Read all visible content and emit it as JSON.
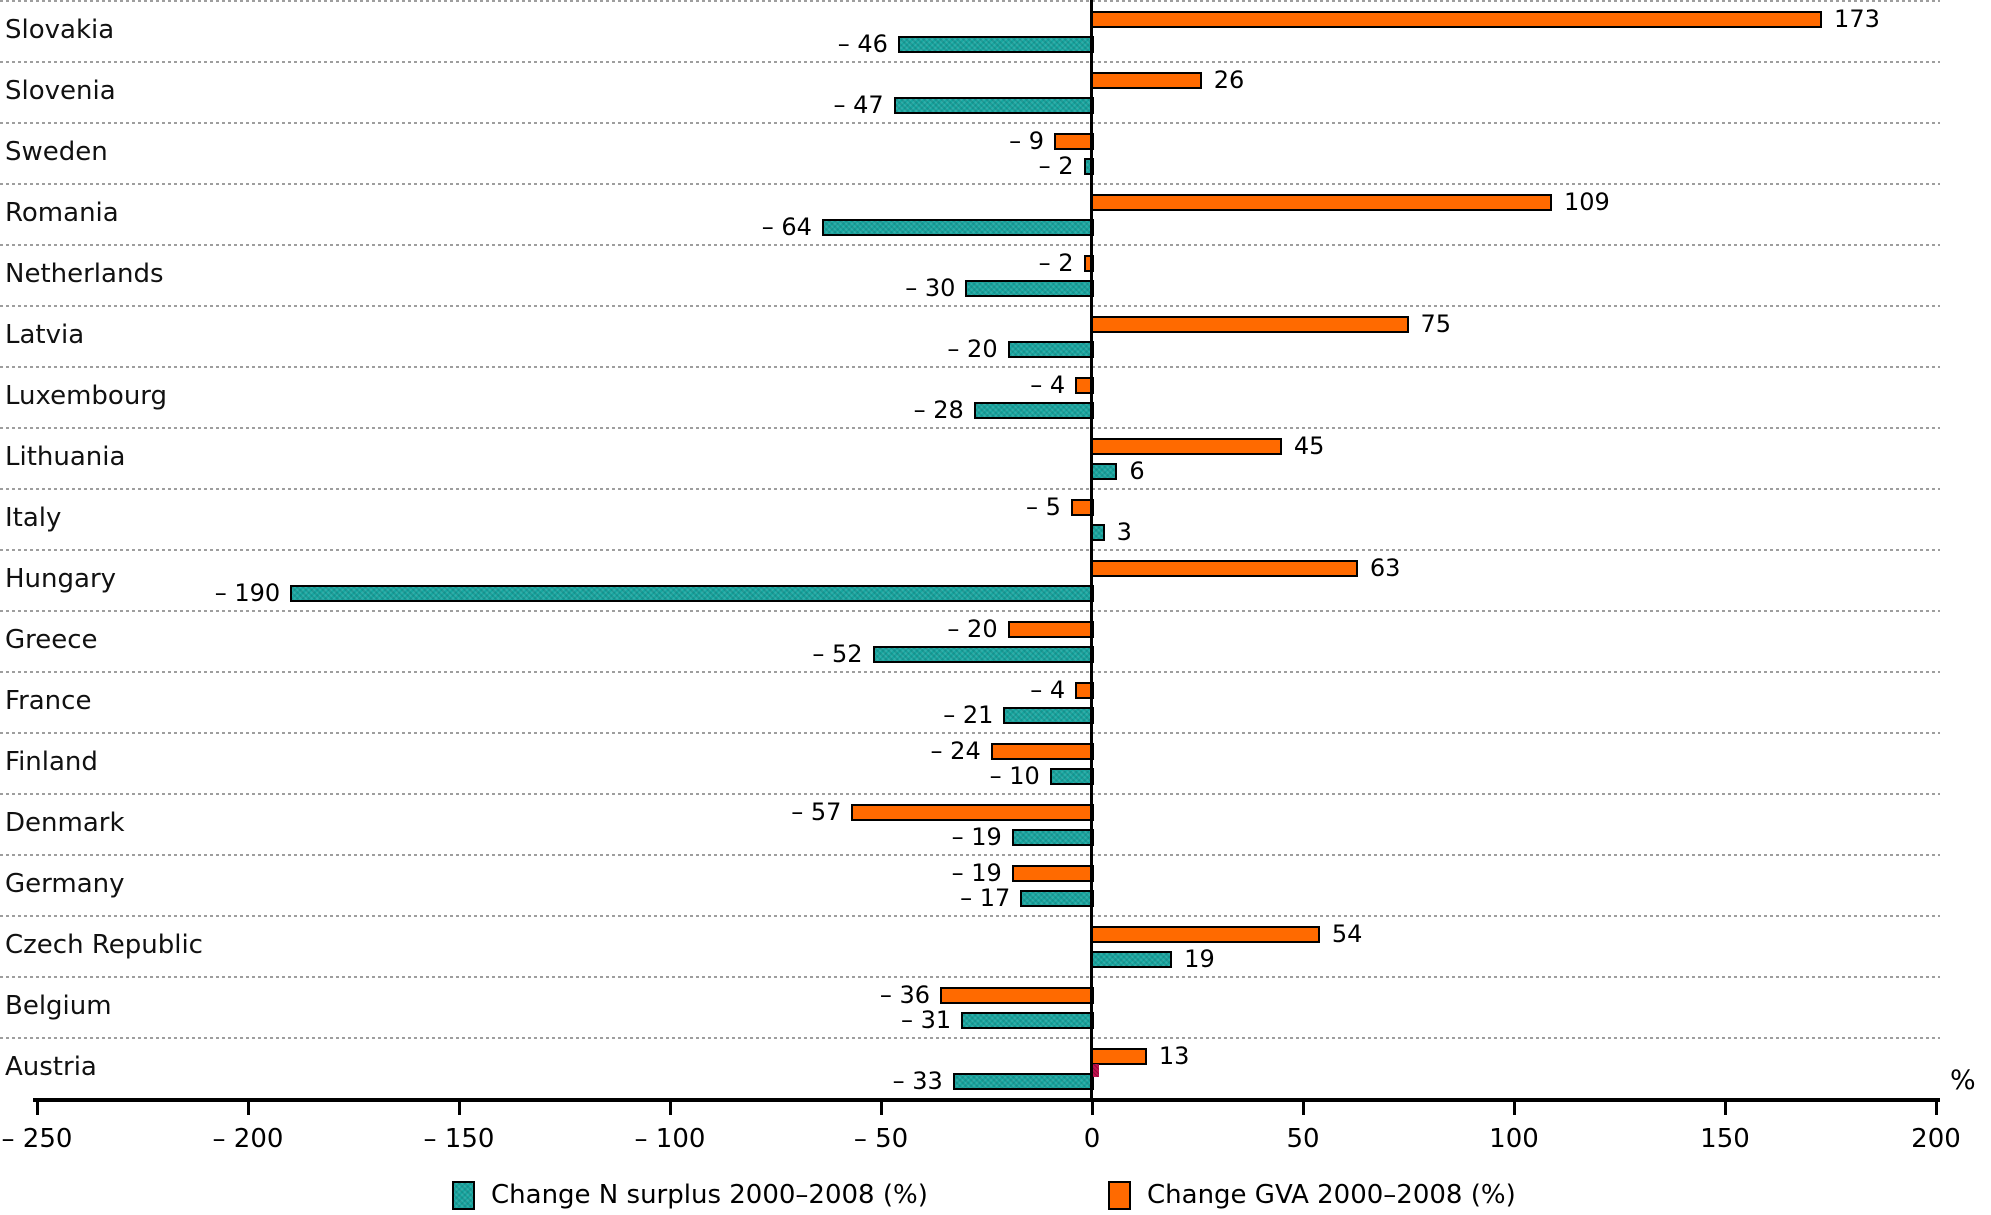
{
  "chart_data": {
    "type": "bar",
    "orientation": "horizontal",
    "title": "",
    "xlabel": "%",
    "ylabel": "",
    "xlim": [
      -250,
      200
    ],
    "x_ticks": [
      -250,
      -200,
      -150,
      -100,
      -50,
      0,
      50,
      100,
      150,
      200
    ],
    "grid": "horizontal-dashed-gray",
    "legend_position": "bottom",
    "categories": [
      "Slovakia",
      "Slovenia",
      "Sweden",
      "Romania",
      "Netherlands",
      "Latvia",
      "Luxembourg",
      "Lithuania",
      "Italy",
      "Hungary",
      "Greece",
      "France",
      "Finland",
      "Denmark",
      "Germany",
      "Czech Republic",
      "Belgium",
      "Austria"
    ],
    "series": [
      {
        "name": "Change N surplus 2000–2008 (%)",
        "color": "#17a6a0",
        "values": [
          -46,
          -47,
          -2,
          -64,
          -30,
          -20,
          -28,
          6,
          3,
          -190,
          -52,
          -21,
          -10,
          -19,
          -17,
          19,
          -31,
          -33
        ]
      },
      {
        "name": "Change GVA  2000–2008 (%)",
        "color": "#ff6a00",
        "values": [
          173,
          26,
          -9,
          109,
          -2,
          75,
          -4,
          45,
          -5,
          63,
          -20,
          -4,
          -24,
          -57,
          -19,
          54,
          -36,
          13
        ]
      }
    ],
    "annotation": {
      "small_mark_category": "Austria",
      "small_mark_color": "#c2114e"
    }
  },
  "legend": {
    "items": [
      {
        "label": "Change N surplus 2000–2008 (%)",
        "color": "#17a6a0"
      },
      {
        "label": "Change GVA  2000–2008 (%)",
        "color": "#ff6a00"
      }
    ]
  },
  "colors": {
    "n_surplus": "#17a6a0",
    "gva": "#ff6a00",
    "axis": "#000000",
    "gridline": "#9e9e9e",
    "small_mark": "#c2114e"
  }
}
